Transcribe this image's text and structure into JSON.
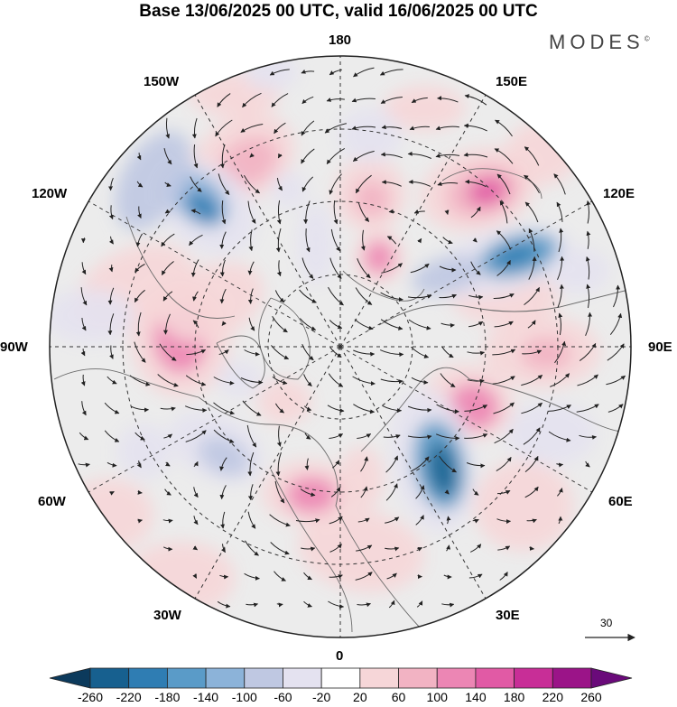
{
  "title": "Base 13/06/2025 00 UTC, valid 16/06/2025 00 UTC",
  "brand": "MODES",
  "brand_mark": "©",
  "map": {
    "projection": "north polar stereographic",
    "longitude_labels": {
      "top": "180",
      "bottom": "0",
      "left": "90W",
      "right": "90E",
      "upper_left_outer": "120W",
      "upper_left_inner": "150W",
      "upper_right_inner": "150E",
      "upper_right_outer": "120E",
      "lower_left_outer": "60W",
      "lower_left_inner": "30W",
      "lower_right_inner": "30E",
      "lower_right_outer": "60E"
    },
    "vector_scale_label": "30",
    "colors": {
      "ocean_land_background": "#ececec",
      "near_zero": "#ffffff",
      "graticule": "#333333",
      "coastline": "#555555"
    }
  },
  "colorbar": {
    "labels": [
      "-260",
      "-220",
      "-180",
      "-140",
      "-100",
      "-60",
      "-20",
      "20",
      "60",
      "100",
      "140",
      "180",
      "220",
      "260"
    ],
    "colors": [
      "#0c3a5c",
      "#17608f",
      "#2f7db3",
      "#5a9bc8",
      "#8cb3d9",
      "#bfc8e2",
      "#e4e2f0",
      "#ffffff",
      "#f6d6d8",
      "#f2b3c3",
      "#ec86b4",
      "#e15aa5",
      "#c82e97",
      "#9b1488",
      "#6a0a7a"
    ]
  }
}
